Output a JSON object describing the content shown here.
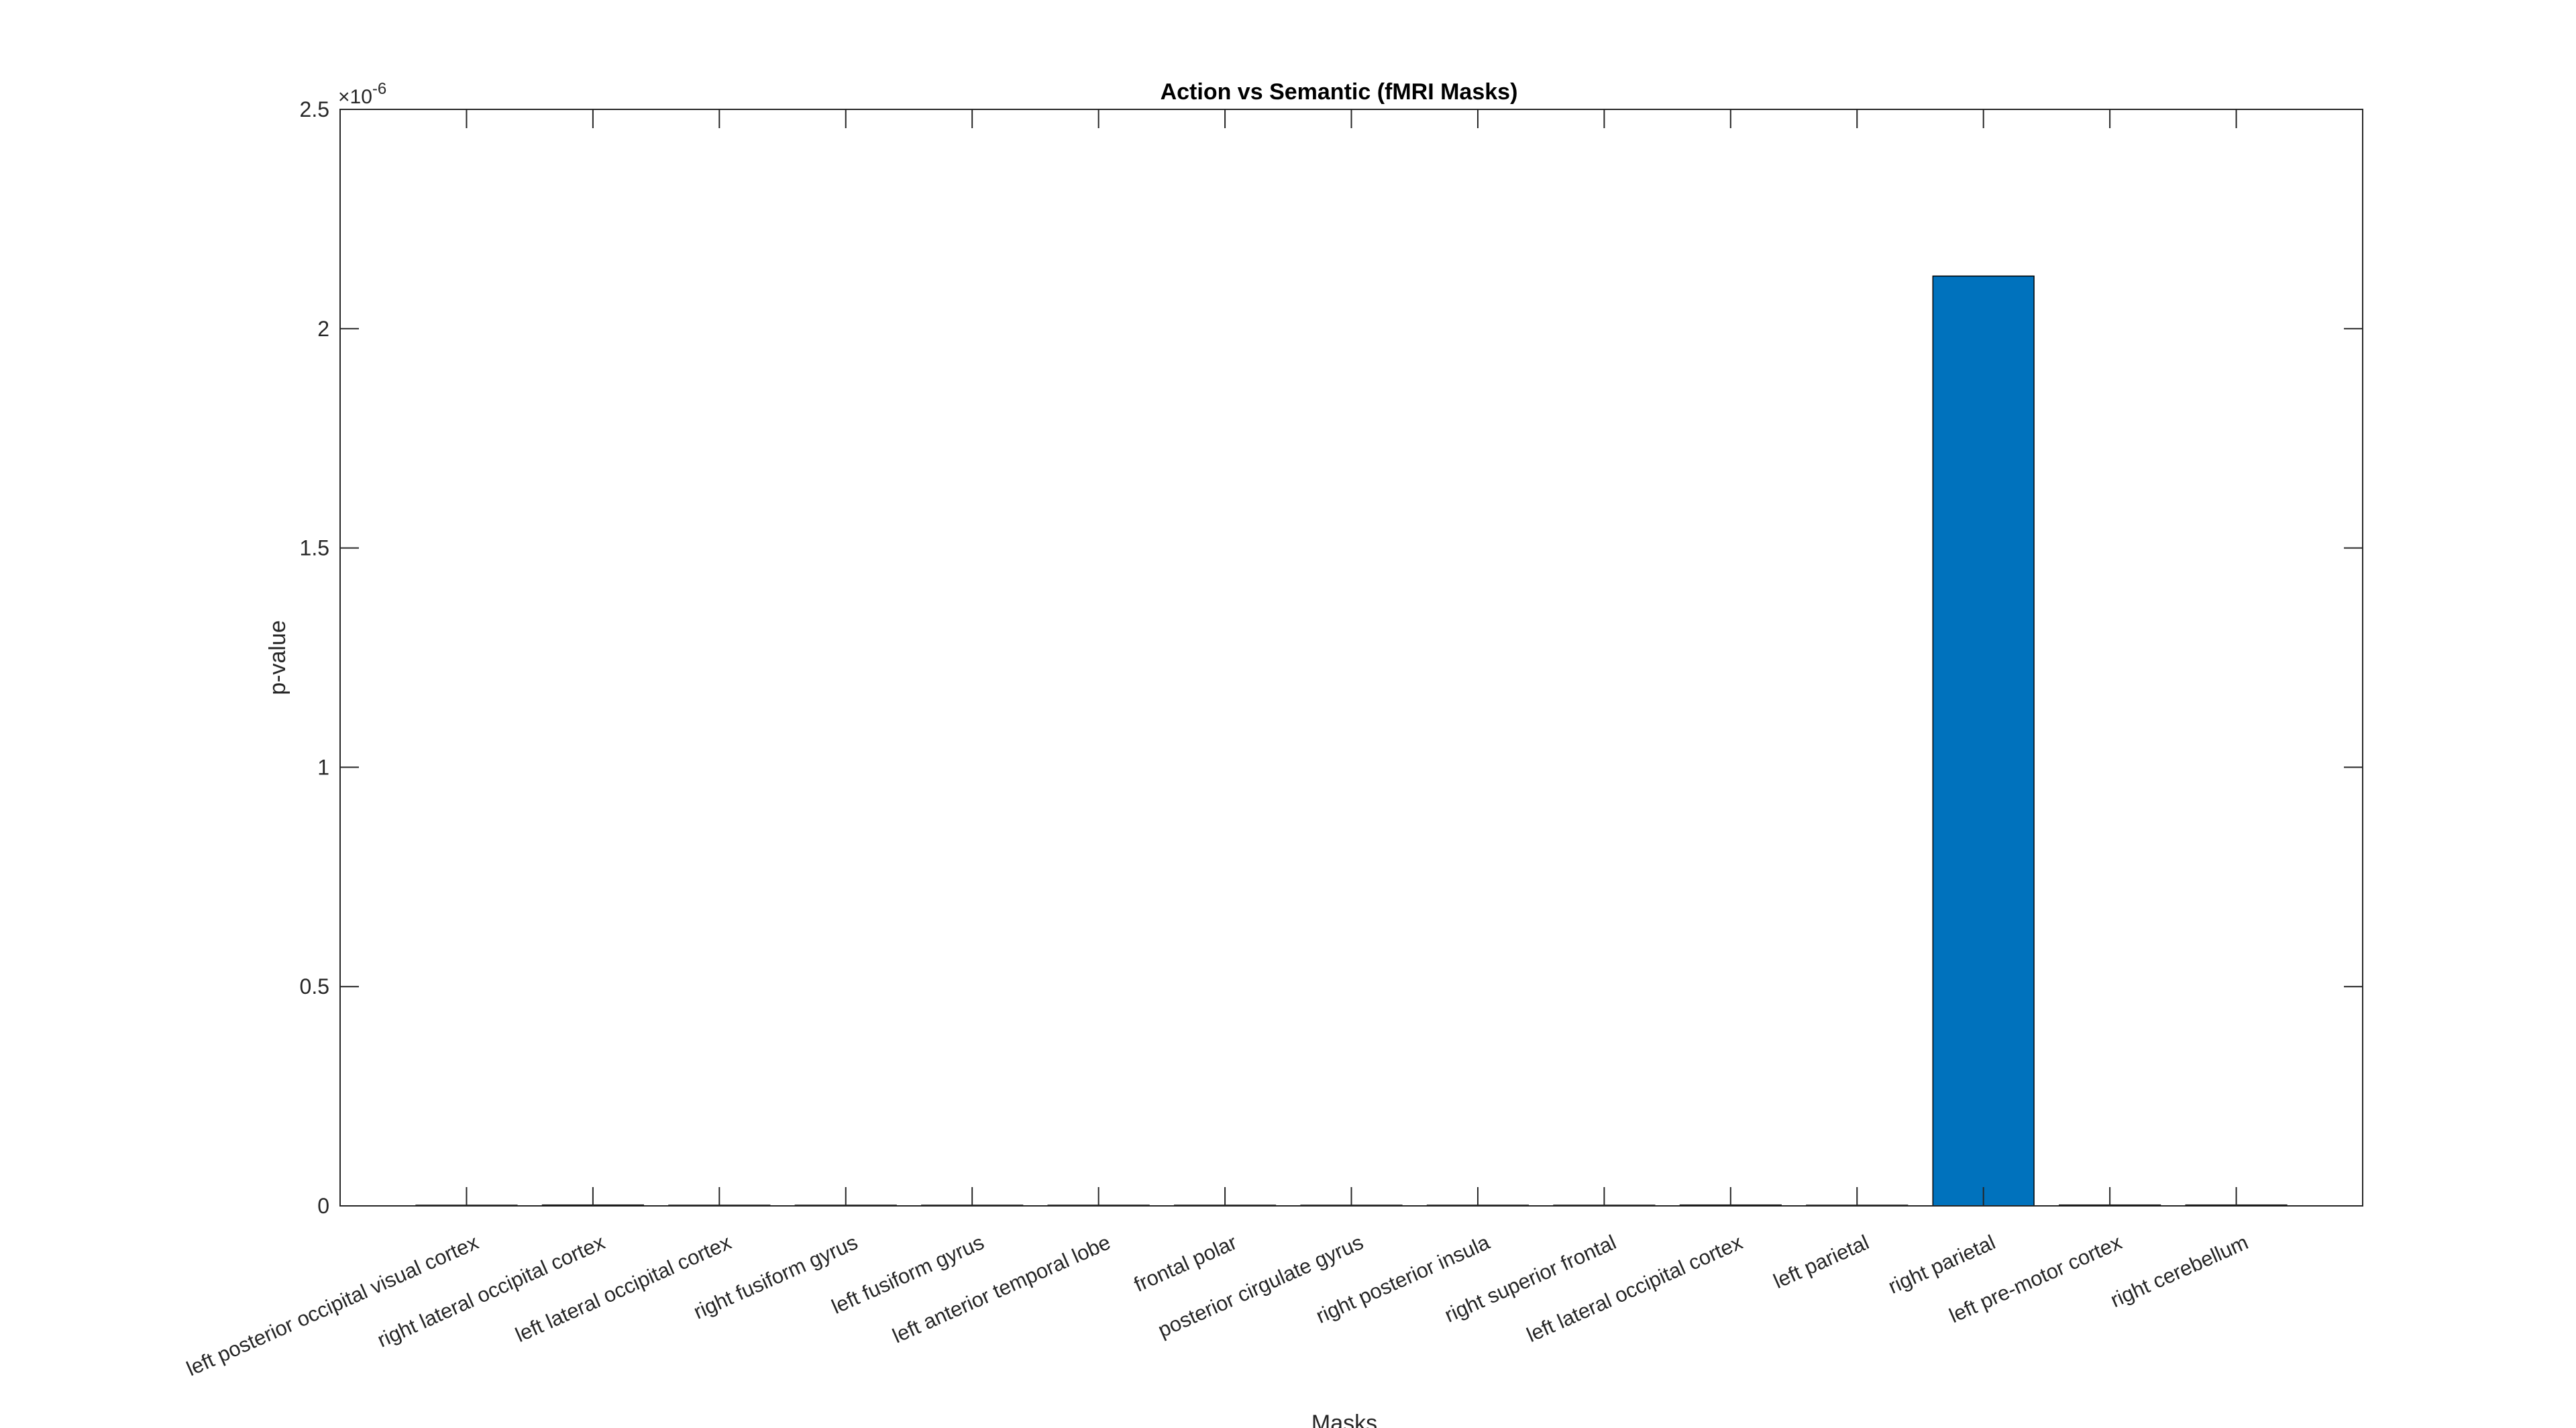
{
  "chart_data": {
    "type": "bar",
    "title": "Action vs Semantic (fMRI Masks)",
    "xlabel": "Masks",
    "ylabel": "p-value",
    "exponent_base": "×10",
    "exponent_power": "-6",
    "ylim": [
      0,
      2.5
    ],
    "ytick_values": [
      0,
      0.5,
      1,
      1.5,
      2,
      2.5
    ],
    "ytick_labels": [
      "0",
      "0.5",
      "1",
      "1.5",
      "2",
      "2.5"
    ],
    "grid": false,
    "bar_color": "#0072BD",
    "categories": [
      "left posterior occipital visual cortex",
      "right lateral occipital cortex",
      "left lateral occipital cortex",
      "right fusiform gyrus",
      "left fusiform gyrus",
      "left anterior temporal lobe",
      "frontal polar",
      "posterior cirgulate gyrus",
      "right posterior insula",
      "right superior frontal",
      "left lateral occipital cortex",
      "left parietal",
      "right parietal",
      "left pre-motor cortex",
      "right cerebellum"
    ],
    "values": [
      0,
      0.002,
      0,
      0,
      0,
      0,
      0,
      0,
      0,
      0,
      0.002,
      0,
      2.12,
      0.002,
      0.002
    ]
  }
}
